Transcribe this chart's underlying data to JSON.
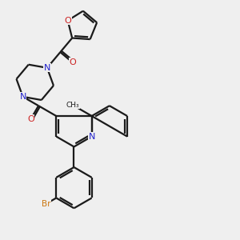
{
  "bg_color": "#efefef",
  "bond_color": "#1a1a1a",
  "nitrogen_color": "#2222cc",
  "oxygen_color": "#cc2222",
  "bromine_color": "#cc7711",
  "lw": 1.6,
  "fig_w": 3.0,
  "fig_h": 3.0,
  "xlim": [
    0,
    10
  ],
  "ylim": [
    0,
    10
  ]
}
